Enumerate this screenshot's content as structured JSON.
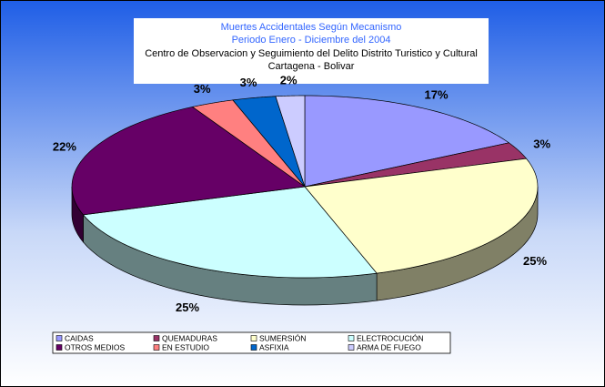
{
  "chart_data": {
    "type": "pie3d",
    "title": [
      "Muertes Accidentales Según Mecanismo",
      "Periodo Enero - Diciembre del  2004"
    ],
    "subtitle": [
      "Centro de Observacion y Seguimiento del Delito Distrito Turistico y Cultural",
      "Cartagena - Bolivar"
    ],
    "categories": [
      "CAIDAS",
      "QUEMADURAS",
      "SUMERSIÓN",
      "ELECTROCUCIÓN",
      "OTROS MEDIOS",
      "EN ESTUDIO",
      "ASFIXIA",
      "ARMA DE FUEGO"
    ],
    "values": [
      17,
      3,
      25,
      25,
      22,
      3,
      3,
      2
    ],
    "value_labels": [
      "17%",
      "3%",
      "25%",
      "25%",
      "22%",
      "3%",
      "3%",
      "2%"
    ],
    "colors": [
      "#9999ff",
      "#993366",
      "#ffffcc",
      "#ccffff",
      "#660066",
      "#ff8080",
      "#0066cc",
      "#ccccff"
    ]
  }
}
